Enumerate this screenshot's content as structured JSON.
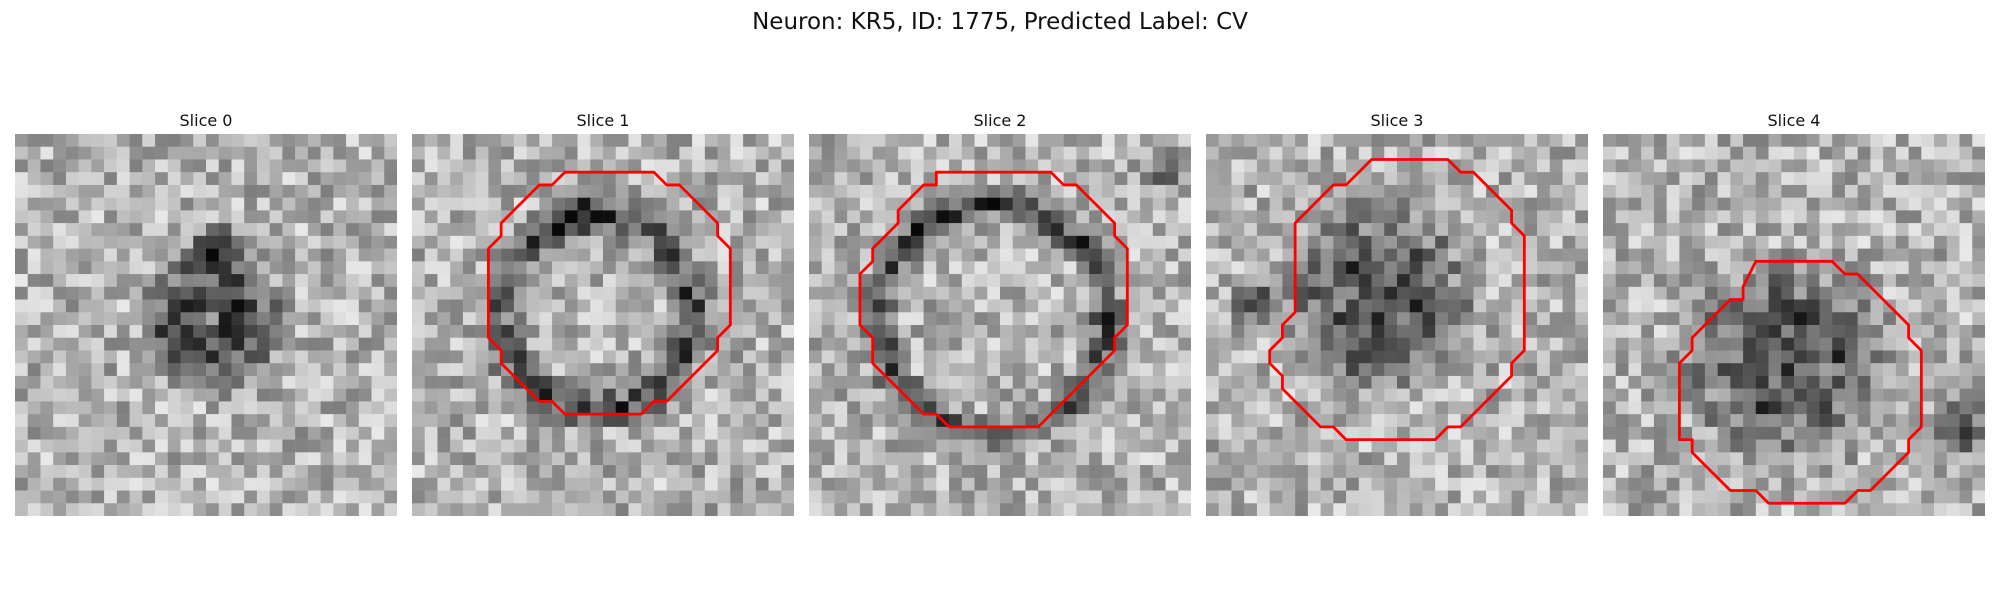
{
  "figure": {
    "title": "Neuron: KR5, ID: 1775, Predicted Label: CV",
    "contour_color": "#ff0000"
  },
  "panels": [
    {
      "title": "Slice 0",
      "has_contour": false,
      "seed": 11
    },
    {
      "title": "Slice 1",
      "has_contour": true,
      "seed": 23
    },
    {
      "title": "Slice 2",
      "has_contour": true,
      "seed": 37
    },
    {
      "title": "Slice 3",
      "has_contour": true,
      "seed": 51
    },
    {
      "title": "Slice 4",
      "has_contour": true,
      "seed": 67
    }
  ]
}
